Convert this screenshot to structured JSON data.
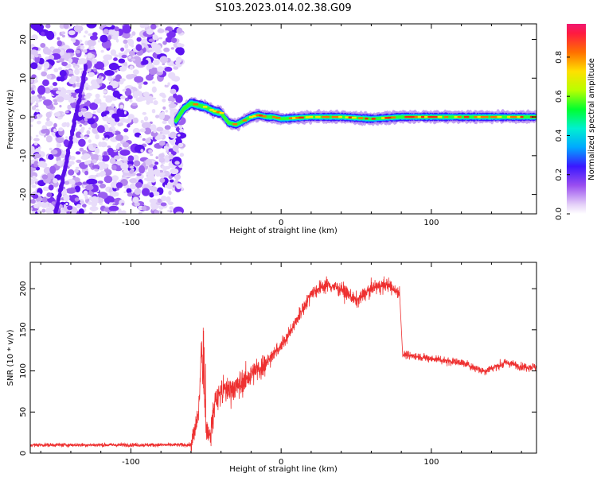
{
  "title": "S103.2023.014.02.38.G09",
  "chart_data": [
    {
      "type": "heatmap",
      "xlabel": "Height of straight line (km)",
      "ylabel": "Frequency (Hz)",
      "xlim": [
        -167,
        170
      ],
      "ylim": [
        -25,
        24
      ],
      "xticks": [
        -100,
        0,
        100
      ],
      "yticks": [
        20,
        10,
        0,
        -10,
        -20
      ],
      "colorbar": {
        "label": "Normalized spectral amplitude",
        "range": [
          0.0,
          0.97
        ],
        "ticks": [
          0.0,
          0.2,
          0.4,
          0.6,
          0.8
        ]
      },
      "ridge": {
        "x": [
          -70,
          -65,
          -60,
          -55,
          -50,
          -45,
          -40,
          -35,
          -30,
          -25,
          -20,
          -15,
          -10,
          -5,
          0,
          20,
          40,
          60,
          80,
          100,
          120,
          140,
          160,
          170
        ],
        "y": [
          -1,
          2,
          3.5,
          3,
          2.5,
          1.5,
          1,
          -1.5,
          -2,
          -1,
          0,
          0.5,
          0,
          0,
          -0.5,
          0,
          0,
          -0.5,
          0,
          0,
          0,
          0,
          0,
          0
        ]
      },
      "noise_xrange": [
        -167,
        -70
      ],
      "noise_streak": {
        "x": [
          -150,
          -130
        ],
        "y": [
          -25,
          13
        ]
      }
    },
    {
      "type": "line",
      "xlabel": "Height of straight line (km)",
      "ylabel": "SNR (10 * v/v)",
      "xlim": [
        -167,
        170
      ],
      "ylim": [
        0,
        232
      ],
      "xticks": [
        -100,
        0,
        100
      ],
      "yticks": [
        0,
        50,
        100,
        150,
        200
      ],
      "color": "#ee3030",
      "segments": [
        {
          "x": [
            -167,
            -60
          ],
          "y": [
            10,
            10
          ]
        },
        {
          "x": [
            -60,
            -55,
            -53,
            -50,
            -47,
            -44,
            -40,
            -30,
            -20,
            -10
          ],
          "y": [
            10,
            45,
            130,
            30,
            20,
            65,
            75,
            80,
            95,
            110
          ]
        },
        {
          "x": [
            -10,
            0,
            10,
            20,
            30,
            40,
            50,
            60,
            70,
            79
          ],
          "y": [
            110,
            130,
            160,
            195,
            205,
            200,
            185,
            200,
            205,
            195
          ]
        },
        {
          "x": [
            81,
            100,
            120,
            135,
            150,
            160,
            170
          ],
          "y": [
            120,
            115,
            110,
            100,
            110,
            105,
            105
          ]
        }
      ]
    }
  ]
}
